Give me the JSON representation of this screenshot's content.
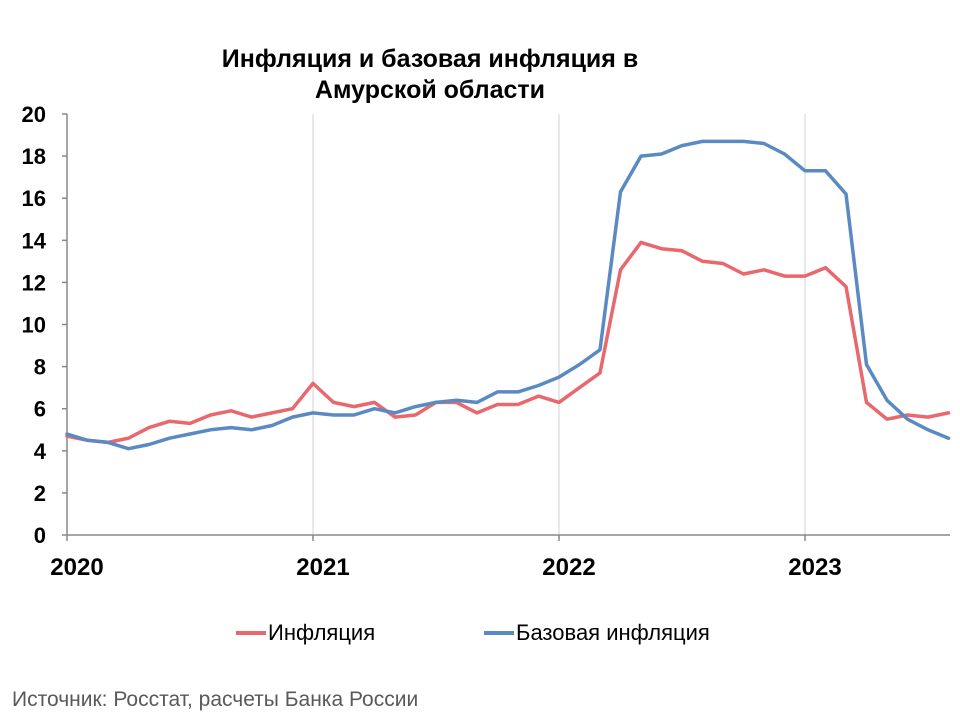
{
  "chart_data": {
    "type": "line",
    "title_lines": [
      "Инфляция и базовая инфляция в",
      "Амурской области"
    ],
    "x_tick_labels": [
      "2020",
      "2021",
      "2022",
      "2023"
    ],
    "y_tick_labels": [
      "0",
      "2",
      "4",
      "6",
      "8",
      "10",
      "12",
      "14",
      "16",
      "18",
      "20"
    ],
    "ylim": [
      0,
      20
    ],
    "x_start_year": 2020,
    "x_months": 44,
    "grid": "vertical at year boundaries",
    "legend_position": "bottom",
    "series": [
      {
        "name": "Инфляция",
        "color": "#e8686e",
        "values": [
          4.7,
          4.5,
          4.4,
          4.6,
          5.1,
          5.4,
          5.3,
          5.7,
          5.9,
          5.6,
          5.8,
          6.0,
          7.2,
          6.3,
          6.1,
          6.3,
          5.6,
          5.7,
          6.3,
          6.3,
          5.8,
          6.2,
          6.2,
          6.6,
          6.3,
          7.0,
          7.7,
          12.6,
          13.9,
          13.6,
          13.5,
          13.0,
          12.9,
          12.4,
          12.6,
          12.3,
          12.3,
          12.7,
          11.8,
          6.3,
          5.5,
          5.7,
          5.6,
          5.8
        ]
      },
      {
        "name": "Базовая инфляция",
        "color": "#5b8ac2",
        "values": [
          4.8,
          4.5,
          4.4,
          4.1,
          4.3,
          4.6,
          4.8,
          5.0,
          5.1,
          5.0,
          5.2,
          5.6,
          5.8,
          5.7,
          5.7,
          6.0,
          5.8,
          6.1,
          6.3,
          6.4,
          6.3,
          6.8,
          6.8,
          7.1,
          7.5,
          8.1,
          8.8,
          16.3,
          18.0,
          18.1,
          18.5,
          18.7,
          18.7,
          18.7,
          18.6,
          18.1,
          17.3,
          17.3,
          16.2,
          8.1,
          6.4,
          5.5,
          5.0,
          4.6
        ]
      }
    ]
  },
  "source_text": "Источник: Росстат, расчеты Банка России"
}
